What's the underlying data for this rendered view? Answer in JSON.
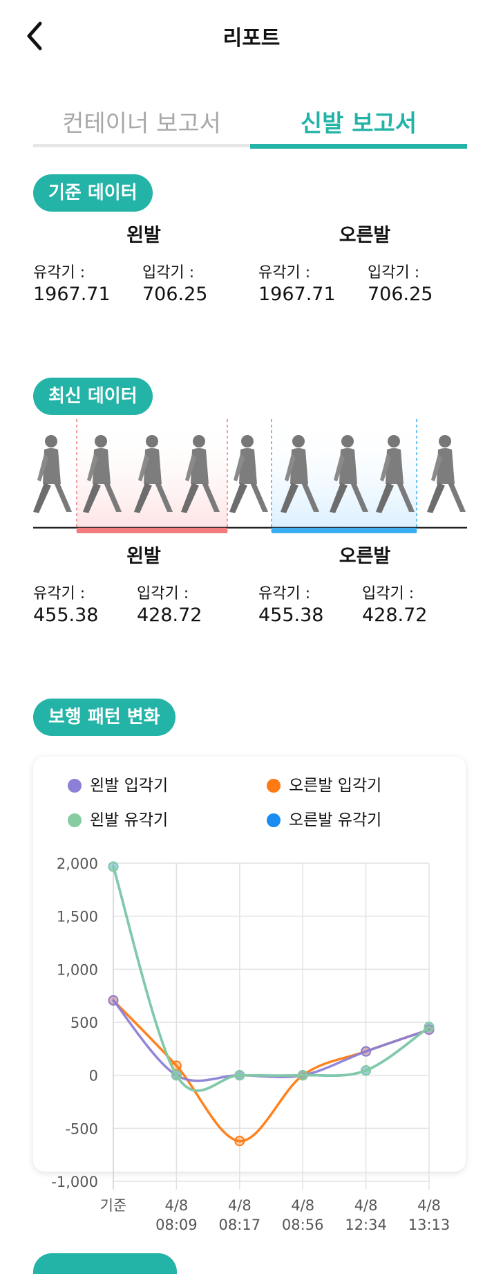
{
  "header": {
    "title": "리포트"
  },
  "tabs": [
    {
      "label": "컨테이너 보고서",
      "active": false
    },
    {
      "label": "신발 보고서",
      "active": true
    }
  ],
  "baseline": {
    "pill": "기준 데이터",
    "left": {
      "title": "왼발",
      "swing_label": "유각기 :",
      "swing": "1967.71",
      "stance_label": "입각기 :",
      "stance": "706.25"
    },
    "right": {
      "title": "오른발",
      "swing_label": "유각기 :",
      "swing": "1967.71",
      "stance_label": "입각기 :",
      "stance": "706.25"
    }
  },
  "latest": {
    "pill": "최신 데이터",
    "left": {
      "title": "왼발",
      "swing_label": "유각기 :",
      "swing": "455.38",
      "stance_label": "입각기 :",
      "stance": "428.72"
    },
    "right": {
      "title": "오른발",
      "swing_label": "유각기 :",
      "swing": "455.38",
      "stance_label": "입각기 :",
      "stance": "428.72"
    }
  },
  "pattern": {
    "pill": "보행 패턴 변화"
  },
  "colors": {
    "accent": "#23b3a7",
    "left_highlight": "#f47b7b",
    "right_highlight": "#3aaef0"
  },
  "chart_data": {
    "type": "line",
    "categories": [
      "기준",
      "4/8 08:09",
      "4/8 08:17",
      "4/8 08:56",
      "4/8 12:34",
      "4/8 13:13"
    ],
    "ylim": [
      -1000,
      2000
    ],
    "yticks": [
      "2,000",
      "1,500",
      "1,000",
      "500",
      "0",
      "-500",
      "-1,000"
    ],
    "grid": true,
    "legend_position": "top",
    "series": [
      {
        "name": "왼발 입각기",
        "color": "#8b80d6",
        "values": [
          706,
          0,
          0,
          0,
          225,
          430
        ]
      },
      {
        "name": "오른발 입각기",
        "color": "#ff7a12",
        "values": [
          706,
          90,
          -620,
          0,
          225,
          430
        ]
      },
      {
        "name": "왼발 유각기",
        "color": "#86cca0",
        "values": [
          1967,
          0,
          0,
          0,
          45,
          455
        ]
      },
      {
        "name": "오른발 유각기",
        "color": "#1a8df0",
        "values": [
          1967,
          0,
          0,
          0,
          45,
          455
        ]
      }
    ]
  }
}
